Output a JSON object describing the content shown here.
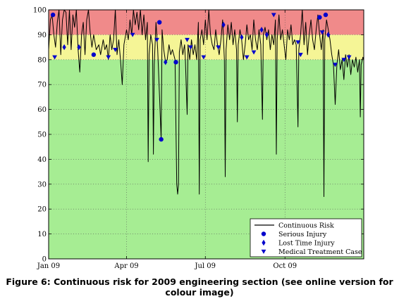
{
  "caption": "Figure 6: Continuous risk for 2009 engineering section (see online version for colour image)",
  "colors": {
    "band_high": "#f08a8a",
    "band_medium": "#f5f596",
    "band_low": "#a6ed93",
    "line": "#000000",
    "markers": "#0000cc"
  },
  "chart_data": {
    "type": "line",
    "xlim": [
      "2009-01-01",
      "2009-12-31"
    ],
    "ylim": [
      0,
      100
    ],
    "grid": true,
    "x_ticks": [
      {
        "date": "2009-01-01",
        "label": "Jan 09"
      },
      {
        "date": "2009-04-01",
        "label": "Apr 09"
      },
      {
        "date": "2009-07-01",
        "label": "Jul 09"
      },
      {
        "date": "2009-10-01",
        "label": "Oct 09"
      }
    ],
    "y_ticks": [
      0,
      10,
      20,
      30,
      40,
      50,
      60,
      70,
      80,
      90,
      100
    ],
    "bands": [
      {
        "from": 90,
        "to": 100,
        "color": "#f08a8a"
      },
      {
        "from": 80,
        "to": 90,
        "color": "#f5f596"
      },
      {
        "from": 0,
        "to": 80,
        "color": "#a6ed93"
      }
    ],
    "legend_position": "bottom-right",
    "series": [
      {
        "name": "Continuous Risk",
        "style": "line",
        "points": [
          [
            "2009-01-01",
            84
          ],
          [
            "2009-01-03",
            96
          ],
          [
            "2009-01-05",
            98
          ],
          [
            "2009-01-07",
            90
          ],
          [
            "2009-01-09",
            85
          ],
          [
            "2009-01-11",
            95
          ],
          [
            "2009-01-13",
            100
          ],
          [
            "2009-01-15",
            82
          ],
          [
            "2009-01-17",
            96
          ],
          [
            "2009-01-19",
            100
          ],
          [
            "2009-01-21",
            99
          ],
          [
            "2009-01-23",
            86
          ],
          [
            "2009-01-25",
            100
          ],
          [
            "2009-01-27",
            84
          ],
          [
            "2009-01-29",
            98
          ],
          [
            "2009-01-31",
            93
          ],
          [
            "2009-02-02",
            100
          ],
          [
            "2009-02-04",
            84
          ],
          [
            "2009-02-06",
            75
          ],
          [
            "2009-02-08",
            90
          ],
          [
            "2009-02-10",
            95
          ],
          [
            "2009-02-12",
            82
          ],
          [
            "2009-02-14",
            96
          ],
          [
            "2009-02-16",
            100
          ],
          [
            "2009-02-18",
            91
          ],
          [
            "2009-02-20",
            85
          ],
          [
            "2009-02-22",
            90
          ],
          [
            "2009-02-25",
            84
          ],
          [
            "2009-02-28",
            86
          ],
          [
            "2009-03-02",
            82
          ],
          [
            "2009-03-05",
            88
          ],
          [
            "2009-03-07",
            84
          ],
          [
            "2009-03-09",
            86
          ],
          [
            "2009-03-11",
            80
          ],
          [
            "2009-03-13",
            90
          ],
          [
            "2009-03-15",
            84
          ],
          [
            "2009-03-17",
            88
          ],
          [
            "2009-03-19",
            100
          ],
          [
            "2009-03-21",
            82
          ],
          [
            "2009-03-23",
            88
          ],
          [
            "2009-03-25",
            80
          ],
          [
            "2009-03-27",
            70
          ],
          [
            "2009-03-29",
            86
          ],
          [
            "2009-04-01",
            92
          ],
          [
            "2009-04-03",
            88
          ],
          [
            "2009-04-05",
            96
          ],
          [
            "2009-04-07",
            90
          ],
          [
            "2009-04-09",
            100
          ],
          [
            "2009-04-11",
            94
          ],
          [
            "2009-04-13",
            99
          ],
          [
            "2009-04-15",
            92
          ],
          [
            "2009-04-17",
            100
          ],
          [
            "2009-04-19",
            90
          ],
          [
            "2009-04-21",
            98
          ],
          [
            "2009-04-23",
            88
          ],
          [
            "2009-04-25",
            95
          ],
          [
            "2009-04-26",
            39
          ],
          [
            "2009-04-27",
            82
          ],
          [
            "2009-04-29",
            90
          ],
          [
            "2009-05-01",
            86
          ],
          [
            "2009-05-02",
            42
          ],
          [
            "2009-05-03",
            78
          ],
          [
            "2009-05-05",
            95
          ],
          [
            "2009-05-07",
            84
          ],
          [
            "2009-05-09",
            66
          ],
          [
            "2009-05-11",
            48
          ],
          [
            "2009-05-12",
            92
          ],
          [
            "2009-05-14",
            84
          ],
          [
            "2009-05-16",
            79
          ],
          [
            "2009-05-18",
            80
          ],
          [
            "2009-05-20",
            86
          ],
          [
            "2009-05-22",
            82
          ],
          [
            "2009-05-24",
            84
          ],
          [
            "2009-05-27",
            80
          ],
          [
            "2009-05-29",
            30
          ],
          [
            "2009-05-30",
            26
          ],
          [
            "2009-05-31",
            30
          ],
          [
            "2009-06-01",
            83
          ],
          [
            "2009-06-03",
            88
          ],
          [
            "2009-06-05",
            82
          ],
          [
            "2009-06-07",
            86
          ],
          [
            "2009-06-08",
            80
          ],
          [
            "2009-06-09",
            68
          ],
          [
            "2009-06-10",
            58
          ],
          [
            "2009-06-11",
            86
          ],
          [
            "2009-06-13",
            80
          ],
          [
            "2009-06-15",
            88
          ],
          [
            "2009-06-17",
            82
          ],
          [
            "2009-06-19",
            86
          ],
          [
            "2009-06-21",
            80
          ],
          [
            "2009-06-23",
            95
          ],
          [
            "2009-06-24",
            26
          ],
          [
            "2009-06-25",
            88
          ],
          [
            "2009-06-27",
            92
          ],
          [
            "2009-06-29",
            86
          ],
          [
            "2009-07-01",
            96
          ],
          [
            "2009-07-03",
            88
          ],
          [
            "2009-07-05",
            100
          ],
          [
            "2009-07-07",
            90
          ],
          [
            "2009-07-09",
            86
          ],
          [
            "2009-07-11",
            84
          ],
          [
            "2009-07-13",
            92
          ],
          [
            "2009-07-15",
            86
          ],
          [
            "2009-07-17",
            82
          ],
          [
            "2009-07-19",
            88
          ],
          [
            "2009-07-21",
            96
          ],
          [
            "2009-07-23",
            80
          ],
          [
            "2009-07-24",
            33
          ],
          [
            "2009-07-25",
            84
          ],
          [
            "2009-07-27",
            94
          ],
          [
            "2009-07-29",
            88
          ],
          [
            "2009-07-31",
            95
          ],
          [
            "2009-08-02",
            86
          ],
          [
            "2009-08-04",
            92
          ],
          [
            "2009-08-06",
            84
          ],
          [
            "2009-08-07",
            55
          ],
          [
            "2009-08-08",
            86
          ],
          [
            "2009-08-10",
            92
          ],
          [
            "2009-08-12",
            88
          ],
          [
            "2009-08-14",
            80
          ],
          [
            "2009-08-16",
            86
          ],
          [
            "2009-08-18",
            94
          ],
          [
            "2009-08-20",
            88
          ],
          [
            "2009-08-22",
            90
          ],
          [
            "2009-08-24",
            84
          ],
          [
            "2009-08-26",
            96
          ],
          [
            "2009-08-28",
            88
          ],
          [
            "2009-08-30",
            84
          ],
          [
            "2009-09-01",
            92
          ],
          [
            "2009-09-03",
            86
          ],
          [
            "2009-09-05",
            56
          ],
          [
            "2009-09-06",
            90
          ],
          [
            "2009-09-08",
            93
          ],
          [
            "2009-09-10",
            88
          ],
          [
            "2009-09-12",
            92
          ],
          [
            "2009-09-14",
            84
          ],
          [
            "2009-09-16",
            90
          ],
          [
            "2009-09-18",
            86
          ],
          [
            "2009-09-20",
            96
          ],
          [
            "2009-09-21",
            42
          ],
          [
            "2009-09-22",
            88
          ],
          [
            "2009-09-24",
            98
          ],
          [
            "2009-09-26",
            88
          ],
          [
            "2009-09-28",
            92
          ],
          [
            "2009-09-30",
            86
          ],
          [
            "2009-10-02",
            80
          ],
          [
            "2009-10-04",
            92
          ],
          [
            "2009-10-06",
            88
          ],
          [
            "2009-10-08",
            94
          ],
          [
            "2009-10-10",
            86
          ],
          [
            "2009-10-12",
            88
          ],
          [
            "2009-10-14",
            86
          ],
          [
            "2009-10-16",
            53
          ],
          [
            "2009-10-17",
            84
          ],
          [
            "2009-10-19",
            90
          ],
          [
            "2009-10-21",
            100
          ],
          [
            "2009-10-23",
            86
          ],
          [
            "2009-10-25",
            95
          ],
          [
            "2009-10-27",
            82
          ],
          [
            "2009-10-29",
            90
          ],
          [
            "2009-10-31",
            96
          ],
          [
            "2009-11-02",
            88
          ],
          [
            "2009-11-04",
            84
          ],
          [
            "2009-11-06",
            92
          ],
          [
            "2009-11-08",
            98
          ],
          [
            "2009-11-10",
            90
          ],
          [
            "2009-11-12",
            84
          ],
          [
            "2009-11-14",
            92
          ],
          [
            "2009-11-15",
            25
          ],
          [
            "2009-11-16",
            88
          ],
          [
            "2009-11-18",
            96
          ],
          [
            "2009-11-20",
            92
          ],
          [
            "2009-11-22",
            88
          ],
          [
            "2009-11-24",
            82
          ],
          [
            "2009-11-26",
            78
          ],
          [
            "2009-11-28",
            62
          ],
          [
            "2009-11-30",
            78
          ],
          [
            "2009-12-02",
            84
          ],
          [
            "2009-12-04",
            76
          ],
          [
            "2009-12-06",
            80
          ],
          [
            "2009-12-08",
            72
          ],
          [
            "2009-12-10",
            82
          ],
          [
            "2009-12-12",
            77
          ],
          [
            "2009-12-14",
            82
          ],
          [
            "2009-12-16",
            74
          ],
          [
            "2009-12-18",
            80
          ],
          [
            "2009-12-20",
            77
          ],
          [
            "2009-12-22",
            81
          ],
          [
            "2009-12-24",
            75
          ],
          [
            "2009-12-26",
            80
          ],
          [
            "2009-12-27",
            57
          ],
          [
            "2009-12-28",
            78
          ],
          [
            "2009-12-30",
            81
          ],
          [
            "2009-12-31",
            80
          ]
        ]
      },
      {
        "name": "Serious Injury",
        "style": "circle",
        "points": [
          [
            "2009-01-06",
            98
          ],
          [
            "2009-02-22",
            82
          ],
          [
            "2009-05-09",
            95
          ],
          [
            "2009-05-11",
            48
          ],
          [
            "2009-05-28",
            79
          ],
          [
            "2009-11-10",
            97
          ],
          [
            "2009-11-17",
            98
          ]
        ]
      },
      {
        "name": "Lost Time Injury",
        "style": "diamond",
        "points": [
          [
            "2009-01-19",
            85
          ],
          [
            "2009-02-05",
            85
          ],
          [
            "2009-05-16",
            79
          ],
          [
            "2009-07-22",
            94
          ],
          [
            "2009-08-12",
            89
          ],
          [
            "2009-09-04",
            92
          ],
          [
            "2009-09-10",
            90
          ],
          [
            "2009-11-20",
            90
          ]
        ]
      },
      {
        "name": "Medical Treatment Case",
        "style": "triangle",
        "points": [
          [
            "2009-01-08",
            81
          ],
          [
            "2009-03-11",
            81
          ],
          [
            "2009-03-19",
            84
          ],
          [
            "2009-04-08",
            90
          ],
          [
            "2009-05-06",
            88
          ],
          [
            "2009-06-10",
            88
          ],
          [
            "2009-06-14",
            85
          ],
          [
            "2009-06-29",
            81
          ],
          [
            "2009-07-16",
            85
          ],
          [
            "2009-08-18",
            81
          ],
          [
            "2009-08-26",
            83
          ],
          [
            "2009-09-18",
            98
          ],
          [
            "2009-10-16",
            87
          ],
          [
            "2009-10-19",
            82
          ],
          [
            "2009-11-13",
            91
          ],
          [
            "2009-11-28",
            78
          ],
          [
            "2009-12-08",
            80
          ],
          [
            "2009-12-14",
            81
          ]
        ]
      }
    ]
  }
}
